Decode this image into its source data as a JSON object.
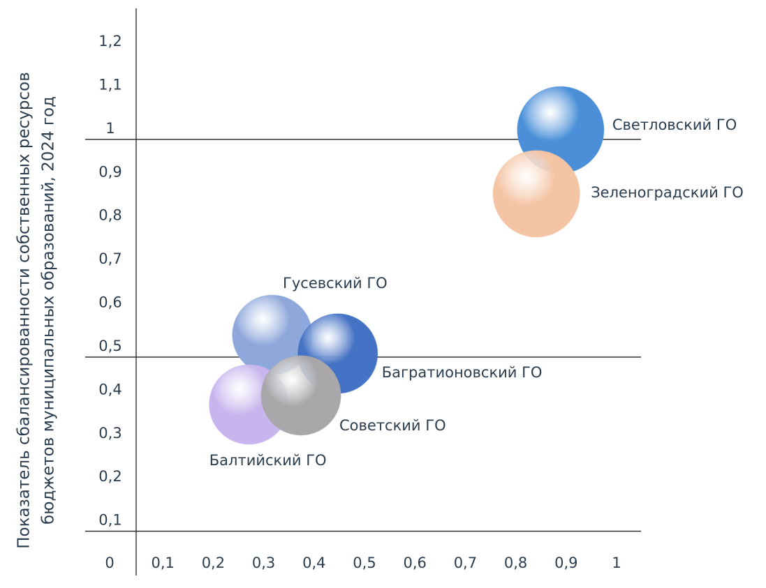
{
  "chart_data": {
    "type": "scatter",
    "ylabel": [
      "Показатель сбалансированности собственных ресурсов",
      "бюджетов муниципальных образований, 2024 год"
    ],
    "xlim": [
      0,
      1
    ],
    "ylim": [
      0,
      1.2
    ],
    "xticks": [
      0,
      {
        "value": 0.1,
        "label": "0,1"
      },
      {
        "value": 0.2,
        "label": "0,2"
      },
      {
        "value": 0.3,
        "label": "0,3"
      },
      {
        "value": 0.4,
        "label": "0,4"
      },
      {
        "value": 0.5,
        "label": "0,5"
      },
      {
        "value": 0.6,
        "label": "0,6"
      },
      {
        "value": 0.7,
        "label": "0,7"
      },
      {
        "value": 0.8,
        "label": "0,8"
      },
      {
        "value": 0.9,
        "label": "0,9"
      },
      1
    ],
    "yticks": [
      {
        "value": 0.1,
        "label": "0,1"
      },
      {
        "value": 0.2,
        "label": "0,2"
      },
      {
        "value": 0.3,
        "label": "0,3"
      },
      {
        "value": 0.4,
        "label": "0,4"
      },
      {
        "value": 0.5,
        "label": "0,5"
      },
      {
        "value": 0.6,
        "label": "0,6"
      },
      {
        "value": 0.7,
        "label": "0,7"
      },
      {
        "value": 0.8,
        "label": "0,8"
      },
      {
        "value": 0.9,
        "label": "0,9"
      },
      1,
      {
        "value": 1.1,
        "label": "1,1"
      },
      {
        "value": 1.2,
        "label": "1,2"
      }
    ],
    "reference_lines": [
      1,
      0.5,
      0.1
    ],
    "series": [
      {
        "name": "Светловский ГО",
        "color": "#4a8fd8",
        "x": [
          0.889
        ],
        "values": [
          1.022
        ]
      },
      {
        "name": "Зеленоградский ГО",
        "color": "#f5c4a4",
        "x": [
          0.841
        ],
        "values": [
          0.875
        ]
      },
      {
        "name": "Гусевский ГО",
        "color": "#8fa8dc",
        "x": [
          0.317
        ],
        "values": [
          0.551
        ]
      },
      {
        "name": "Багратионовский ГО",
        "color": "#4472c4",
        "x": [
          0.447
        ],
        "values": [
          0.508
        ]
      },
      {
        "name": "Балтийский ГО",
        "color": "#c8b5ee",
        "x": [
          0.271
        ],
        "values": [
          0.391
        ]
      },
      {
        "name": "Советский ГО",
        "color": "#a9a7aa",
        "x": [
          0.374
        ],
        "values": [
          0.412
        ]
      }
    ]
  }
}
